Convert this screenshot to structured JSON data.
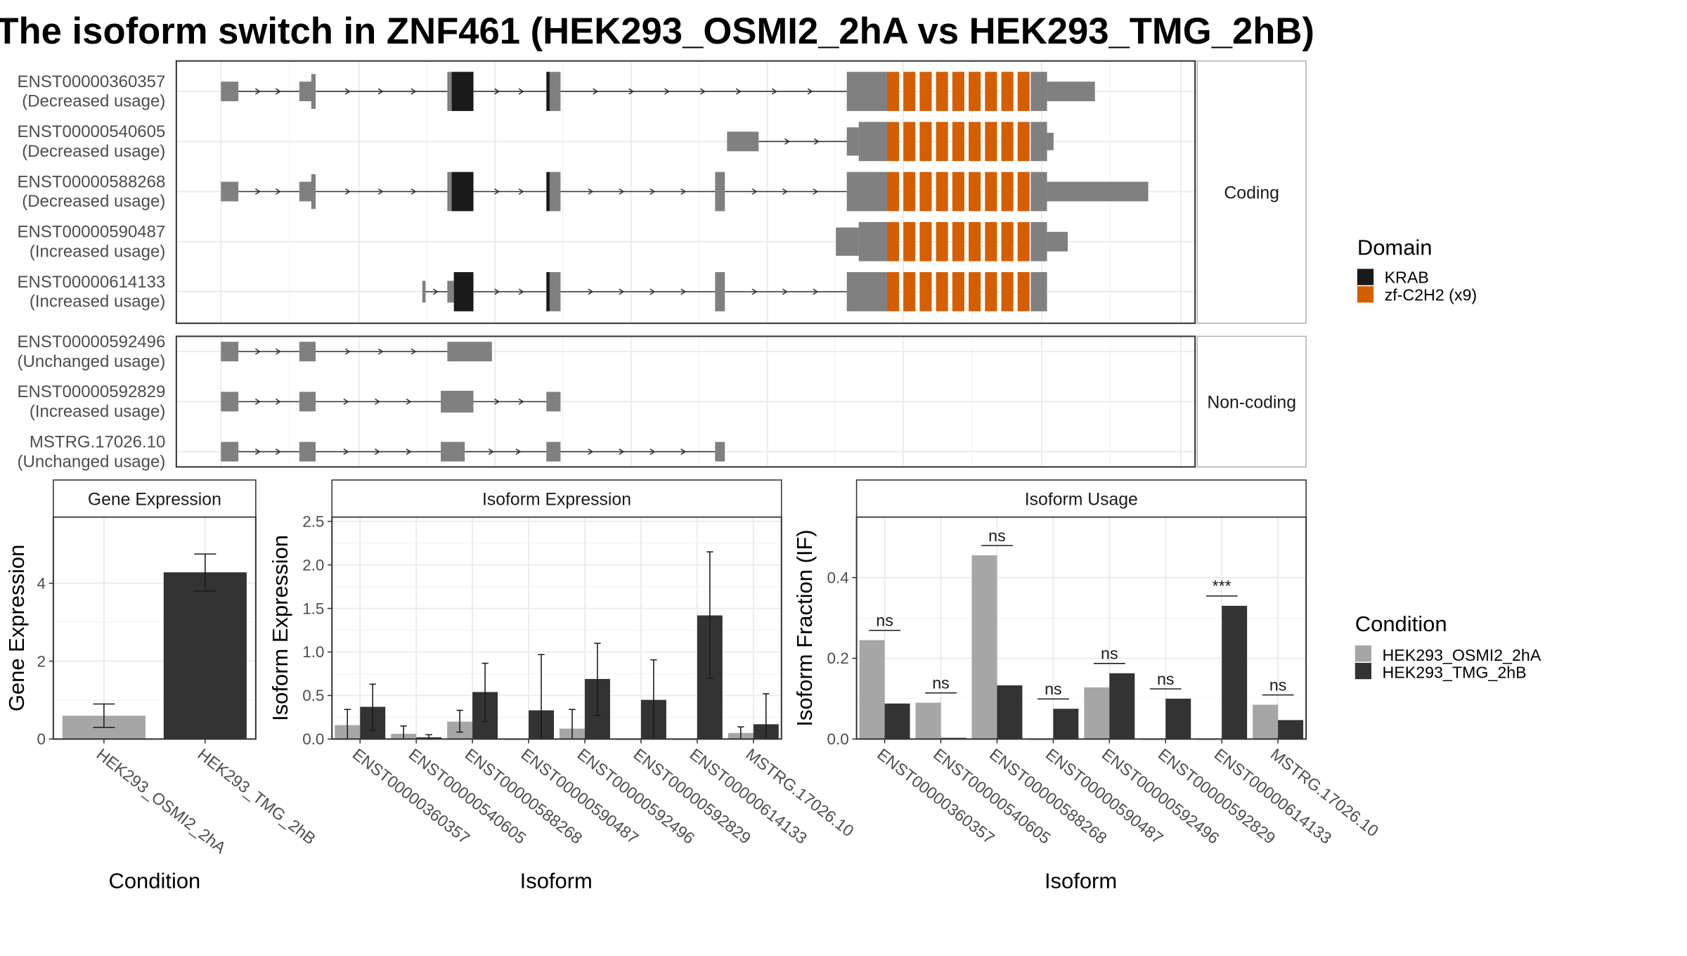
{
  "title": "The isoform switch in ZNF461 (HEK293_OSMI2_2hA vs HEK293_TMG_2hB)",
  "colors": {
    "exon": "#808080",
    "krab": "#1a1a1a",
    "zf": "#d55e00",
    "cond_a": "#a6a6a6",
    "cond_b": "#333333",
    "grid": "#ebebeb",
    "strip_bg": "#ffffff",
    "panel_border": "#333333"
  },
  "structure": {
    "facets": [
      {
        "label": "Coding",
        "rows": [
          0,
          1,
          2,
          3,
          4
        ]
      },
      {
        "label": "Non-coding",
        "rows": [
          5,
          6,
          7
        ]
      }
    ],
    "isoforms": [
      {
        "id": "ENST00000360357",
        "usage": "(Decreased usage)"
      },
      {
        "id": "ENST00000540605",
        "usage": "(Decreased usage)"
      },
      {
        "id": "ENST00000588268",
        "usage": "(Decreased usage)"
      },
      {
        "id": "ENST00000590487",
        "usage": "(Increased usage)"
      },
      {
        "id": "ENST00000614133",
        "usage": "(Increased usage)"
      },
      {
        "id": "ENST00000592496",
        "usage": "(Unchanged usage)"
      },
      {
        "id": "ENST00000592829",
        "usage": "(Increased usage)"
      },
      {
        "id": "MSTRG.17026.10",
        "usage": "(Unchanged usage)"
      }
    ],
    "legend": {
      "title": "Domain",
      "entries": [
        {
          "label": "KRAB",
          "color": "#1a1a1a"
        },
        {
          "label": "zf-C2H2 (x9)",
          "color": "#d55e00"
        }
      ]
    }
  },
  "chart_data": [
    {
      "type": "bar",
      "title": "Gene Expression",
      "xlabel": "Condition",
      "ylabel": "Gene Expression",
      "ylim": [
        0,
        5.7
      ],
      "yticks": [
        0,
        2,
        4
      ],
      "categories": [
        "HEK293_OSMI2_2hA",
        "HEK293_TMG_2hB"
      ],
      "values": [
        0.6,
        4.28
      ],
      "errors": [
        [
          0.3,
          0.9
        ],
        [
          3.8,
          4.75
        ]
      ]
    },
    {
      "type": "bar",
      "title": "Isoform Expression",
      "xlabel": "Isoform",
      "ylabel": "Isoform Expression",
      "ylim": [
        0,
        2.55
      ],
      "yticks": [
        0.0,
        0.5,
        1.0,
        1.5,
        2.0,
        2.5
      ],
      "categories": [
        "ENST00000360357",
        "ENST00000540605",
        "ENST00000588268",
        "ENST00000590487",
        "ENST00000592496",
        "ENST00000592829",
        "ENST00000614133",
        "MSTRG.17026.10"
      ],
      "series": [
        {
          "name": "HEK293_OSMI2_2hA",
          "values": [
            0.16,
            0.06,
            0.2,
            0.0,
            0.12,
            0.0,
            0.0,
            0.07
          ],
          "errors": [
            [
              0.0,
              0.34
            ],
            [
              0.0,
              0.15
            ],
            [
              0.08,
              0.33
            ],
            [
              0.0,
              0.0
            ],
            [
              0.0,
              0.34
            ],
            [
              0.0,
              0.0
            ],
            [
              0.0,
              0.0
            ],
            [
              0.0,
              0.14
            ]
          ]
        },
        {
          "name": "HEK293_TMG_2hB",
          "values": [
            0.37,
            0.02,
            0.54,
            0.33,
            0.69,
            0.45,
            1.42,
            0.17
          ],
          "errors": [
            [
              0.1,
              0.63
            ],
            [
              0.0,
              0.05
            ],
            [
              0.2,
              0.87
            ],
            [
              0.0,
              0.97
            ],
            [
              0.27,
              1.1
            ],
            [
              0.0,
              0.91
            ],
            [
              0.7,
              2.15
            ],
            [
              0.0,
              0.52
            ]
          ]
        }
      ]
    },
    {
      "type": "bar",
      "title": "Isoform Usage",
      "xlabel": "Isoform",
      "ylabel": "Isoform Fraction (IF)",
      "ylim": [
        0,
        0.55
      ],
      "yticks": [
        0.0,
        0.2,
        0.4
      ],
      "categories": [
        "ENST00000360357",
        "ENST00000540605",
        "ENST00000588268",
        "ENST00000590487",
        "ENST00000592496",
        "ENST00000592829",
        "ENST00000614133",
        "MSTRG.17026.10"
      ],
      "series": [
        {
          "name": "HEK293_OSMI2_2hA",
          "values": [
            0.245,
            0.09,
            0.455,
            0.0,
            0.128,
            0.0,
            0.0,
            0.085
          ]
        },
        {
          "name": "HEK293_TMG_2hB",
          "values": [
            0.088,
            0.003,
            0.133,
            0.075,
            0.163,
            0.1,
            0.33,
            0.047
          ]
        }
      ],
      "significance": [
        "ns",
        "ns",
        "ns",
        "ns",
        "ns",
        "ns",
        "***",
        "ns"
      ]
    }
  ],
  "condition_legend": {
    "title": "Condition",
    "entries": [
      {
        "label": "HEK293_OSMI2_2hA",
        "color": "#a6a6a6"
      },
      {
        "label": "HEK293_TMG_2hB",
        "color": "#333333"
      }
    ]
  }
}
